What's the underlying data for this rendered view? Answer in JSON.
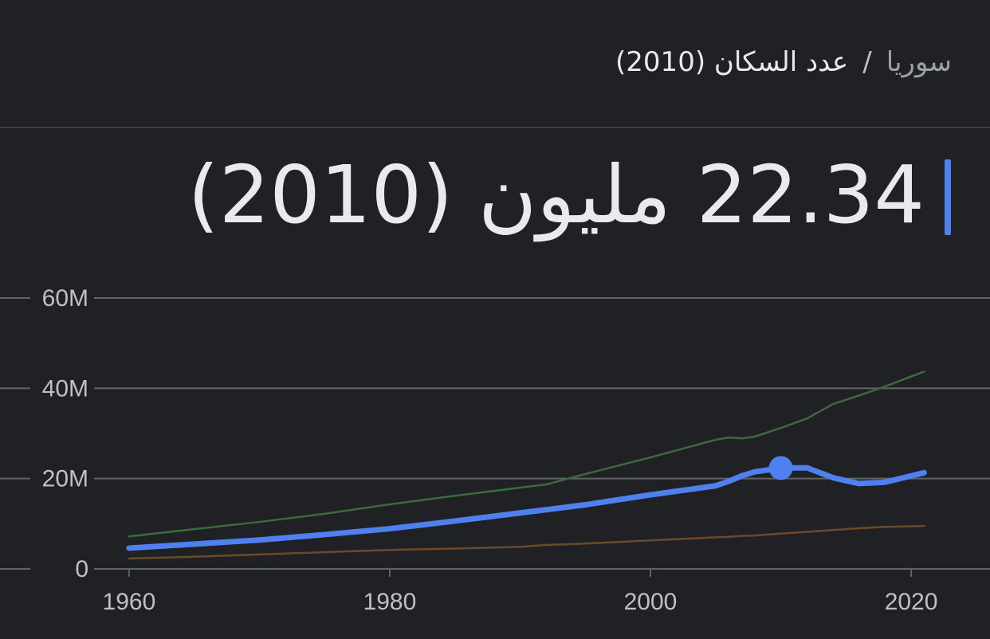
{
  "breadcrumb": {
    "country": "سوريا",
    "separator": "/",
    "metric": "عدد السكان (2010)"
  },
  "headline": "22.34 مليون (2010)",
  "chart_data": {
    "type": "line",
    "x": [
      1960,
      1965,
      1970,
      1975,
      1980,
      1985,
      1990,
      1992,
      1995,
      2000,
      2005,
      2006,
      2007,
      2008,
      2010,
      2012,
      2014,
      2016,
      2018,
      2021
    ],
    "series": [
      {
        "color": "#3b6b3c",
        "values": [
          7.2,
          8.8,
          10.4,
          12.2,
          14.3,
          16.2,
          18.0,
          18.7,
          21.0,
          24.7,
          28.6,
          29.1,
          28.9,
          29.3,
          31.2,
          33.3,
          36.5,
          38.4,
          40.4,
          43.7
        ]
      },
      {
        "color": "#6b4a2b",
        "values": [
          2.3,
          2.7,
          3.2,
          3.7,
          4.2,
          4.5,
          4.9,
          5.3,
          5.6,
          6.3,
          7.0,
          7.1,
          7.3,
          7.4,
          7.8,
          8.2,
          8.6,
          9.0,
          9.3,
          9.5
        ]
      },
      {
        "color": "#4f80f0",
        "values": [
          4.6,
          5.5,
          6.4,
          7.6,
          8.9,
          10.6,
          12.4,
          13.1,
          14.2,
          16.4,
          18.4,
          19.4,
          20.6,
          21.5,
          22.34,
          22.4,
          20.2,
          18.9,
          19.2,
          21.3
        ],
        "highlight_index": 14
      }
    ],
    "xlim": [
      1950.1,
      2026.05
    ],
    "xticks": [
      1960,
      1980,
      2000,
      2020
    ],
    "ylim": [
      0,
      60
    ],
    "yticks": [
      0,
      {
        "value": 20,
        "label": "20M"
      },
      {
        "value": 40,
        "label": "40M"
      },
      {
        "value": 60,
        "label": "60M"
      }
    ],
    "grid": true
  }
}
